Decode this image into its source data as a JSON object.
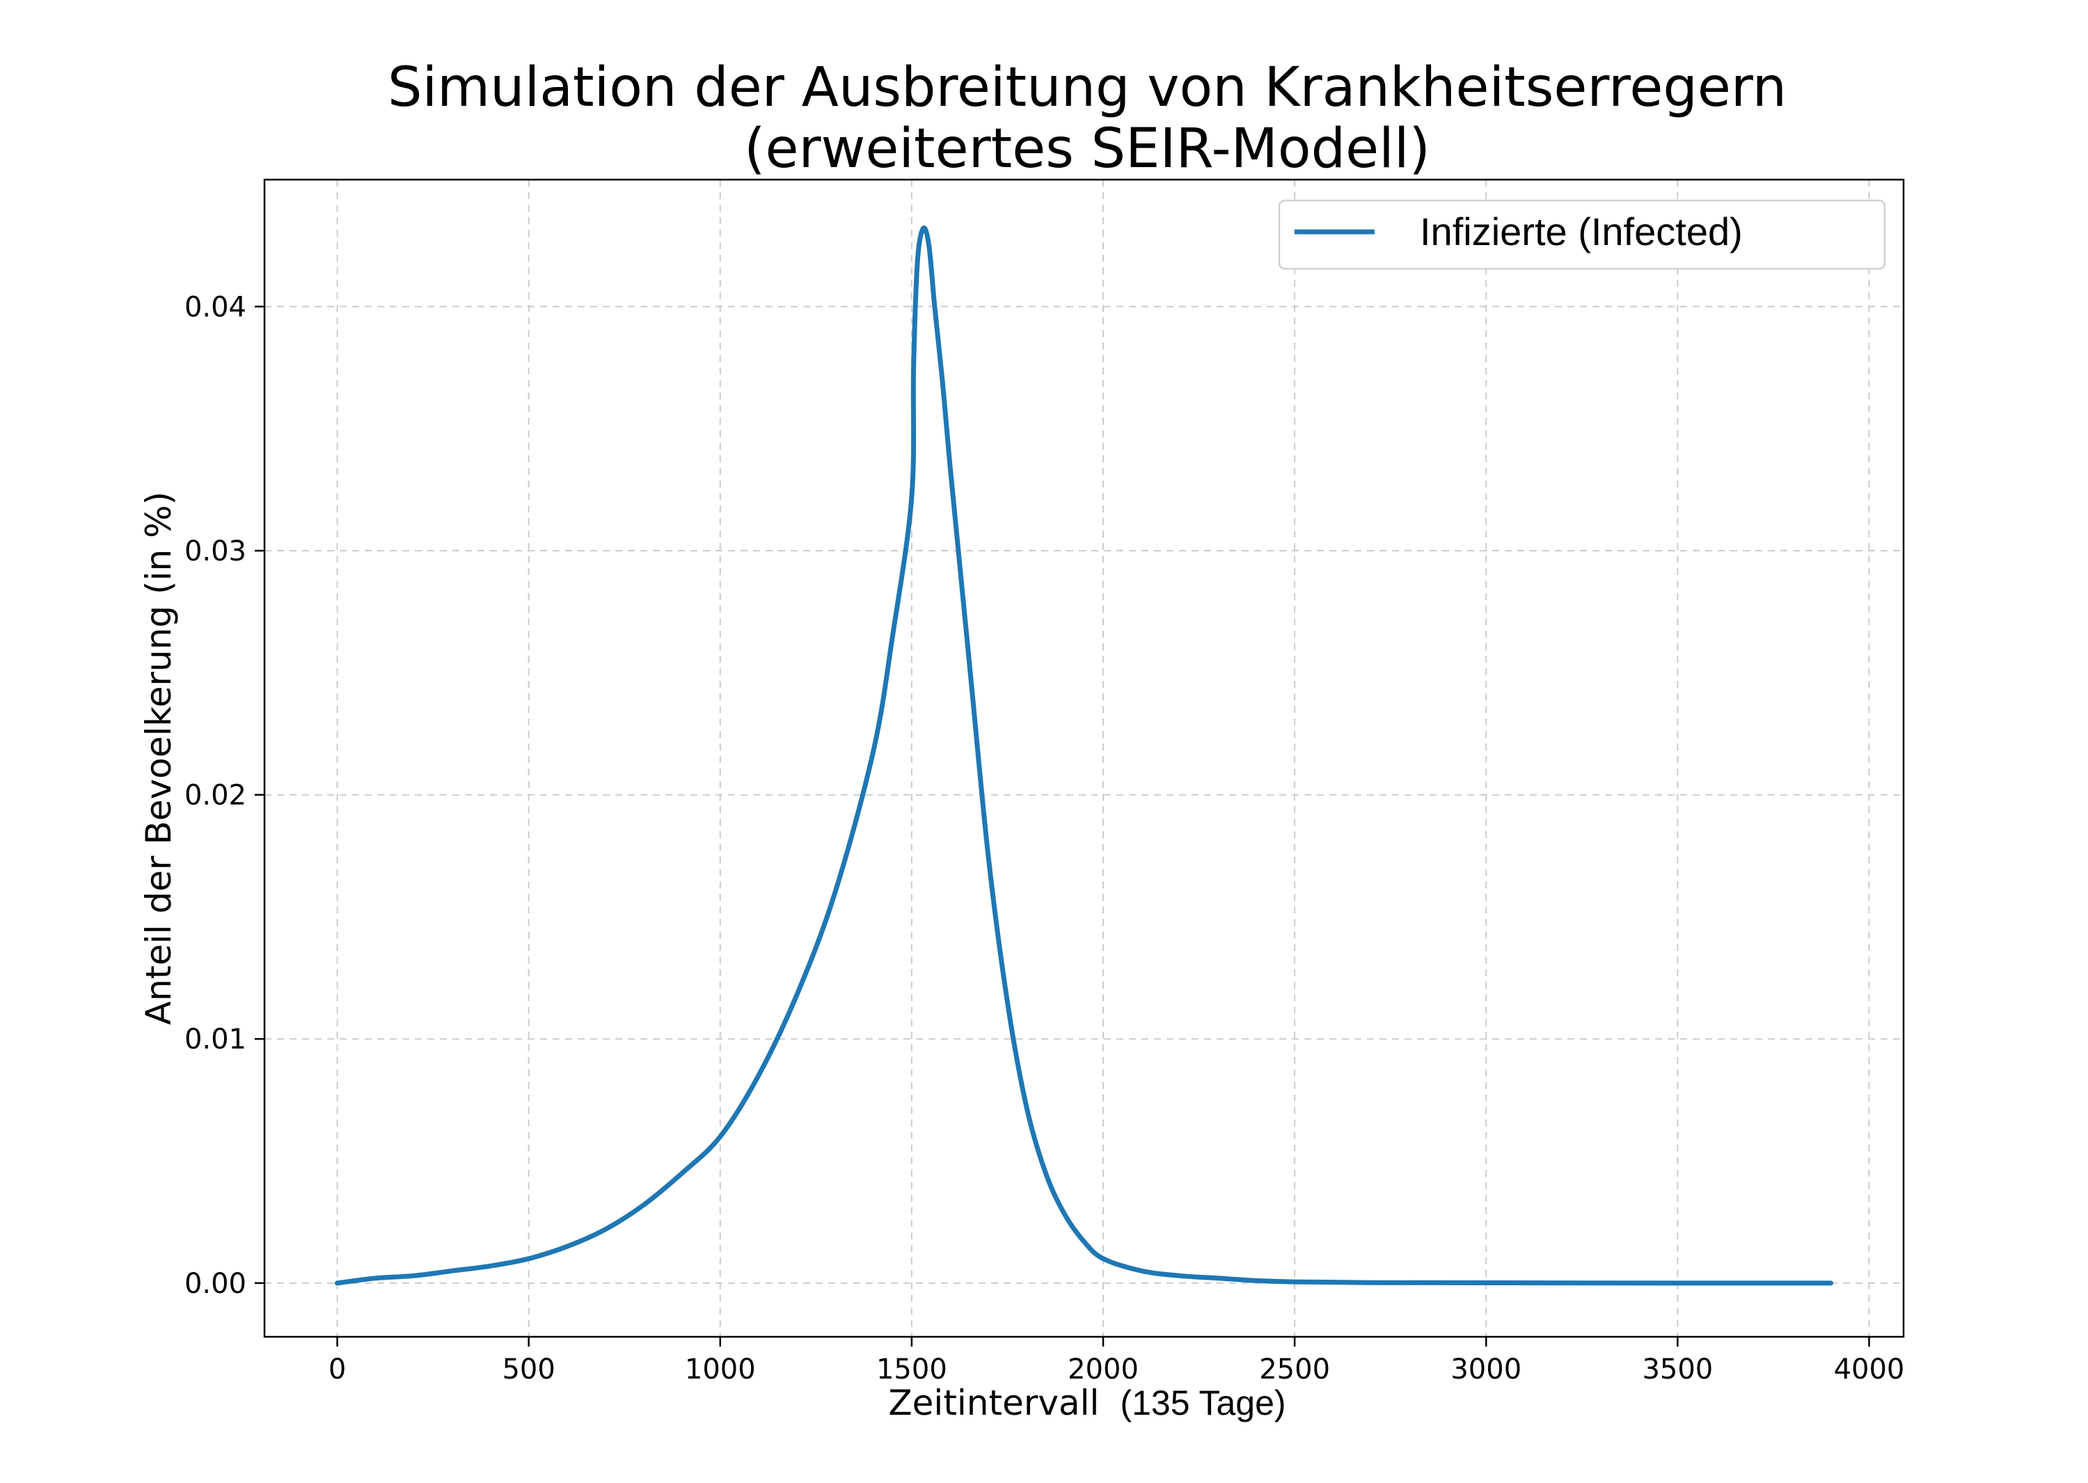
{
  "chart_data": {
    "type": "line",
    "title_line1": "Simulation der Ausbreitung von Krankheitserregern",
    "title_line2": "(erweitertes SEIR-Modell)",
    "xlabel_main": "Zeitintervall",
    "xlabel_suffix": "(135 Tage)",
    "ylabel": "Anteil der Bevoelkerung (in %)",
    "xlim": [
      -190,
      4090
    ],
    "ylim": [
      -0.0022,
      0.0452
    ],
    "x_ticks": [
      0,
      500,
      1000,
      1500,
      2000,
      2500,
      3000,
      3500,
      4000
    ],
    "x_tick_labels": [
      "0",
      "500",
      "1000",
      "1500",
      "2000",
      "2500",
      "3000",
      "3500",
      "4000"
    ],
    "y_ticks": [
      0.0,
      0.01,
      0.02,
      0.03,
      0.04
    ],
    "y_tick_labels": [
      "0.00",
      "0.01",
      "0.02",
      "0.03",
      "0.04"
    ],
    "grid": true,
    "legend_position": "top-right",
    "colors": {
      "series": "#1f77b4"
    },
    "series": [
      {
        "name": "Infizierte (Infected)",
        "x": [
          0,
          100,
          200,
          300,
          400,
          500,
          600,
          700,
          800,
          900,
          1000,
          1100,
          1200,
          1300,
          1400,
          1450,
          1500,
          1505,
          1515,
          1530,
          1545,
          1560,
          1580,
          1600,
          1650,
          1700,
          1750,
          1800,
          1850,
          1900,
          1950,
          2000,
          2100,
          2200,
          2300,
          2400,
          2500,
          2700,
          3000,
          3500,
          3900
        ],
        "y": [
          0.0,
          0.0002,
          0.0003,
          0.0005,
          0.0007,
          0.001,
          0.0015,
          0.0022,
          0.0032,
          0.0045,
          0.006,
          0.0085,
          0.0118,
          0.016,
          0.0218,
          0.0265,
          0.0322,
          0.0375,
          0.0418,
          0.0432,
          0.0425,
          0.04,
          0.037,
          0.0335,
          0.0255,
          0.0175,
          0.0115,
          0.0072,
          0.0045,
          0.0028,
          0.0017,
          0.001,
          0.0005,
          0.0003,
          0.0002,
          0.0001,
          5e-05,
          2e-05,
          1e-05,
          0.0,
          0.0
        ]
      }
    ]
  }
}
